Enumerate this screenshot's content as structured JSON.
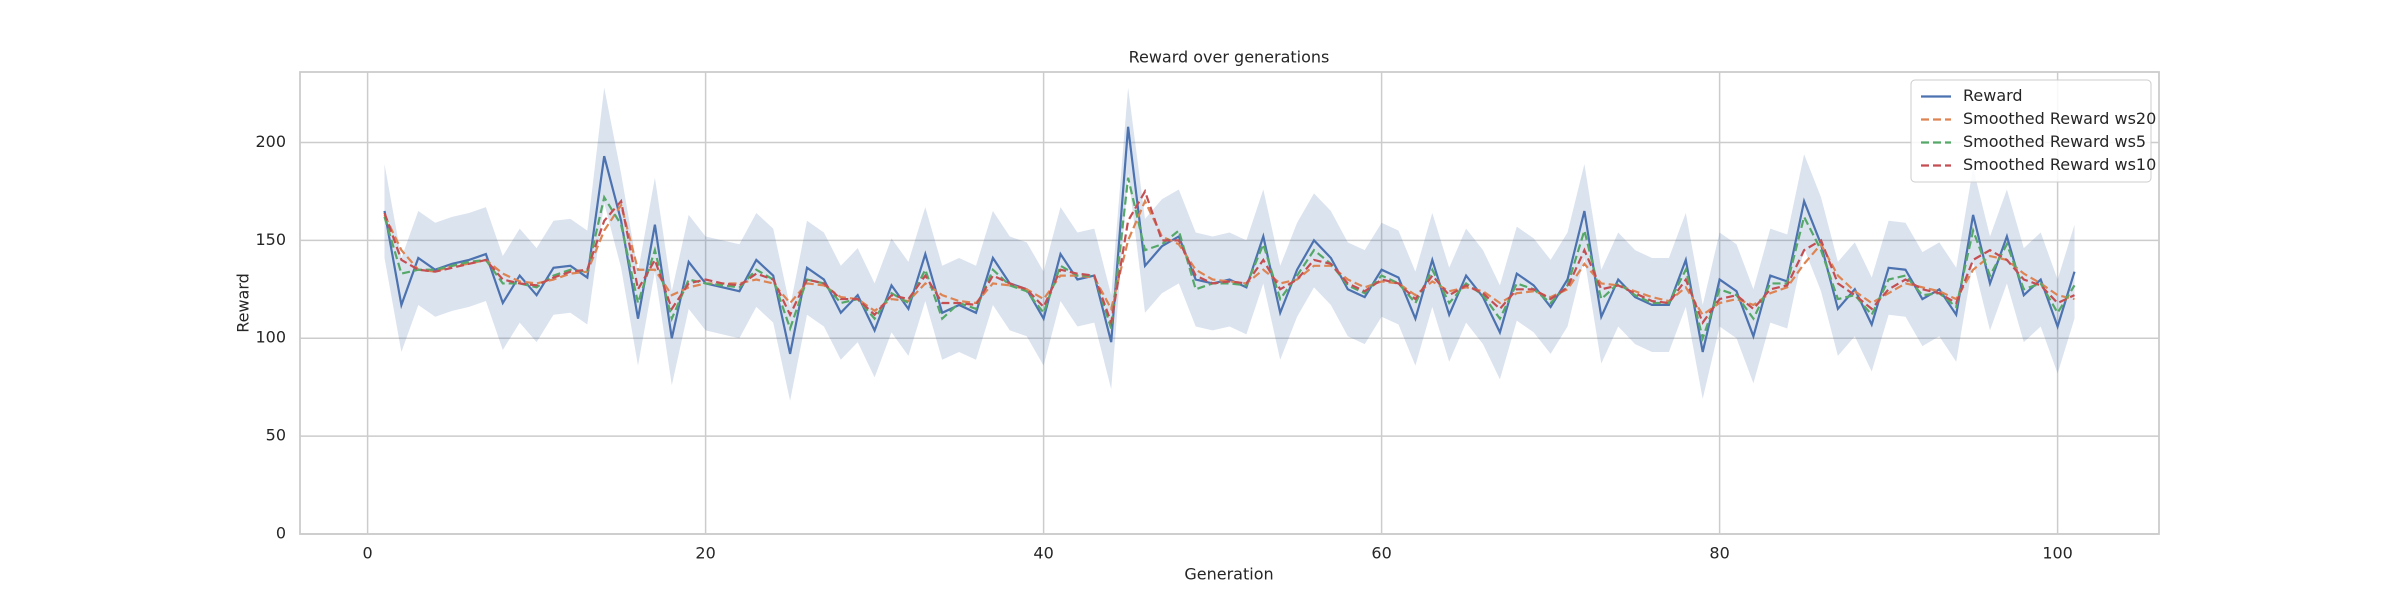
{
  "chart_data": {
    "type": "line",
    "title": "Reward over generations",
    "x_label": "Generation",
    "y_label": "Reward",
    "x": [
      1,
      2,
      3,
      4,
      5,
      6,
      7,
      8,
      9,
      10,
      11,
      12,
      13,
      14,
      15,
      16,
      17,
      18,
      19,
      20,
      21,
      22,
      23,
      24,
      25,
      26,
      27,
      28,
      29,
      30,
      31,
      32,
      33,
      34,
      35,
      36,
      37,
      38,
      39,
      40,
      41,
      42,
      43,
      44,
      45,
      46,
      47,
      48,
      49,
      50,
      51,
      52,
      53,
      54,
      55,
      56,
      57,
      58,
      59,
      60,
      61,
      62,
      63,
      64,
      65,
      66,
      67,
      68,
      69,
      70,
      71,
      72,
      73,
      74,
      75,
      76,
      77,
      78,
      79,
      80,
      81,
      82,
      83,
      84,
      85,
      86,
      87,
      88,
      89,
      90,
      91,
      92,
      93,
      94,
      95,
      96,
      97,
      98,
      99,
      100,
      101
    ],
    "series": [
      {
        "name": "Reward",
        "color": "#4c72b0",
        "dash": false,
        "values": [
          165,
          117,
          141,
          135,
          138,
          140,
          143,
          118,
          132,
          122,
          136,
          137,
          131,
          193,
          160,
          110,
          158,
          100,
          139,
          128,
          126,
          124,
          140,
          132,
          92,
          136,
          130,
          113,
          122,
          104,
          127,
          115,
          143,
          113,
          117,
          113,
          141,
          128,
          125,
          110,
          143,
          130,
          132,
          98,
          208,
          137,
          147,
          152,
          130,
          128,
          130,
          126,
          152,
          113,
          135,
          150,
          141,
          125,
          121,
          135,
          131,
          110,
          140,
          112,
          132,
          121,
          103,
          133,
          127,
          116,
          130,
          165,
          111,
          130,
          121,
          117,
          117,
          140,
          93,
          130,
          124,
          101,
          132,
          129,
          170,
          148,
          115,
          125,
          107,
          136,
          135,
          120,
          125,
          112,
          163,
          128,
          152,
          122,
          130,
          106,
          134
        ],
        "upper": [
          189,
          141,
          165,
          159,
          162,
          164,
          167,
          142,
          156,
          146,
          160,
          161,
          155,
          228,
          184,
          134,
          182,
          124,
          163,
          152,
          150,
          148,
          164,
          156,
          116,
          160,
          154,
          137,
          146,
          128,
          151,
          139,
          167,
          137,
          141,
          137,
          165,
          152,
          149,
          134,
          167,
          154,
          156,
          122,
          228,
          161,
          171,
          176,
          154,
          152,
          154,
          150,
          176,
          137,
          159,
          174,
          165,
          149,
          145,
          159,
          155,
          134,
          164,
          136,
          156,
          145,
          127,
          157,
          151,
          140,
          154,
          189,
          135,
          154,
          145,
          141,
          141,
          164,
          117,
          154,
          148,
          125,
          156,
          153,
          194,
          172,
          139,
          149,
          131,
          160,
          159,
          144,
          149,
          136,
          187,
          152,
          176,
          146,
          154,
          130,
          158
        ],
        "lower": [
          141,
          93,
          117,
          111,
          114,
          116,
          119,
          94,
          108,
          98,
          112,
          113,
          107,
          169,
          136,
          86,
          134,
          76,
          115,
          104,
          102,
          100,
          116,
          108,
          68,
          112,
          106,
          89,
          98,
          80,
          103,
          91,
          119,
          89,
          93,
          89,
          117,
          104,
          101,
          86,
          119,
          106,
          108,
          74,
          184,
          113,
          123,
          128,
          106,
          104,
          106,
          102,
          128,
          89,
          111,
          126,
          117,
          101,
          97,
          111,
          107,
          86,
          116,
          88,
          108,
          97,
          79,
          109,
          103,
          92,
          106,
          141,
          87,
          106,
          97,
          93,
          93,
          116,
          69,
          106,
          100,
          77,
          108,
          105,
          146,
          124,
          91,
          101,
          83,
          112,
          111,
          96,
          101,
          88,
          139,
          104,
          128,
          98,
          106,
          82,
          110
        ]
      },
      {
        "name": "Smoothed Reward ws20",
        "color": "#dd8452",
        "dash": true,
        "values": [
          163,
          145,
          135,
          134,
          137,
          138,
          140,
          133,
          129,
          128,
          130,
          133,
          134,
          155,
          168,
          135,
          135,
          122,
          126,
          128,
          128,
          128,
          130,
          128,
          118,
          128,
          127,
          121,
          120,
          114,
          120,
          119,
          128,
          122,
          119,
          118,
          128,
          127,
          125,
          120,
          132,
          132,
          131,
          115,
          150,
          170,
          152,
          148,
          135,
          130,
          129,
          128,
          135,
          128,
          130,
          137,
          137,
          130,
          126,
          129,
          128,
          122,
          129,
          124,
          126,
          124,
          118,
          123,
          124,
          121,
          125,
          138,
          128,
          127,
          124,
          121,
          119,
          126,
          112,
          118,
          120,
          117,
          123,
          126,
          138,
          148,
          132,
          124,
          118,
          123,
          128,
          126,
          124,
          120,
          135,
          142,
          140,
          133,
          128,
          122,
          120
        ]
      },
      {
        "name": "Smoothed Reward ws5",
        "color": "#55a868",
        "dash": true,
        "values": [
          162,
          133,
          135,
          135,
          137,
          139,
          140,
          128,
          128,
          126,
          132,
          135,
          134,
          172,
          158,
          118,
          145,
          110,
          130,
          128,
          127,
          126,
          135,
          130,
          105,
          130,
          128,
          118,
          120,
          110,
          123,
          118,
          135,
          110,
          118,
          115,
          135,
          127,
          124,
          113,
          137,
          132,
          132,
          105,
          182,
          145,
          148,
          155,
          125,
          128,
          128,
          127,
          148,
          120,
          132,
          145,
          138,
          127,
          123,
          132,
          128,
          118,
          135,
          118,
          128,
          122,
          110,
          128,
          125,
          118,
          127,
          155,
          120,
          128,
          122,
          118,
          118,
          135,
          100,
          125,
          122,
          110,
          128,
          128,
          162,
          145,
          120,
          122,
          112,
          130,
          132,
          122,
          123,
          116,
          155,
          132,
          148,
          125,
          128,
          113,
          127
        ]
      },
      {
        "name": "Smoothed Reward ws10",
        "color": "#c44e52",
        "dash": true,
        "values": [
          164,
          140,
          135,
          134,
          136,
          138,
          140,
          130,
          128,
          127,
          131,
          134,
          135,
          160,
          170,
          125,
          140,
          115,
          128,
          130,
          128,
          127,
          133,
          130,
          112,
          130,
          128,
          120,
          120,
          112,
          122,
          120,
          132,
          118,
          118,
          117,
          132,
          128,
          125,
          116,
          135,
          133,
          132,
          108,
          160,
          175,
          150,
          150,
          132,
          128,
          129,
          128,
          140,
          125,
          130,
          140,
          138,
          128,
          124,
          130,
          128,
          120,
          132,
          122,
          127,
          123,
          115,
          125,
          125,
          120,
          126,
          145,
          125,
          127,
          123,
          119,
          118,
          130,
          108,
          120,
          122,
          115,
          125,
          127,
          145,
          150,
          128,
          122,
          115,
          125,
          130,
          125,
          123,
          118,
          140,
          145,
          140,
          130,
          127,
          118,
          122
        ]
      }
    ],
    "xlim": [
      -4,
      106
    ],
    "ylim": [
      0,
      236
    ],
    "xticks": [
      0,
      20,
      40,
      60,
      80,
      100
    ],
    "yticks": [
      0,
      50,
      100,
      150,
      200
    ],
    "grid": true,
    "legend": "upper right"
  }
}
